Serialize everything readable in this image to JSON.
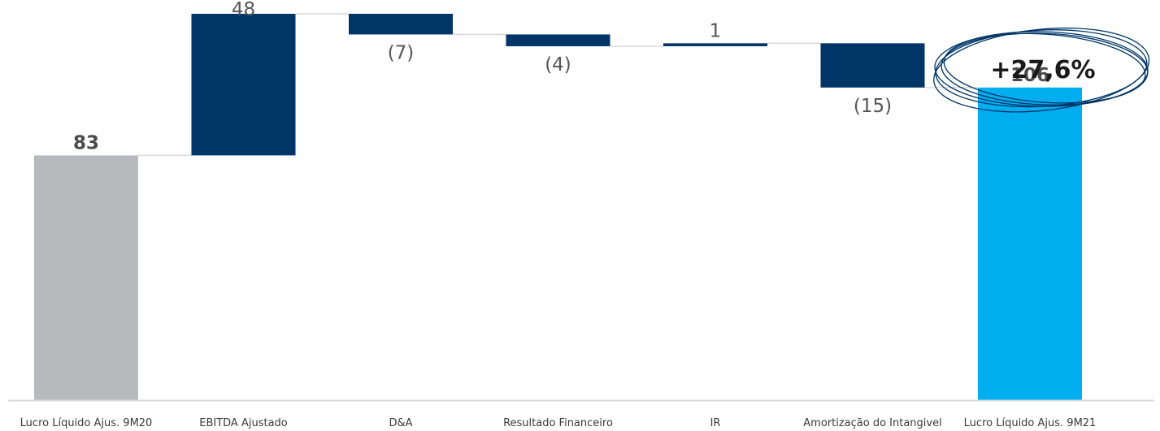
{
  "chart_data": {
    "type": "bar",
    "subtype": "waterfall",
    "categories": [
      "Lucro Líquido Ajus. 9M20",
      "EBITDA Ajustado",
      "D&A",
      "Resultado Financeiro",
      "IR",
      "Amortização do Intangivel",
      "Lucro Líquido Ajus. 9M21"
    ],
    "values": [
      83,
      48,
      -7,
      -4,
      1,
      -15,
      106
    ],
    "value_labels": [
      "83",
      "48",
      "(7)",
      "(4)",
      "1",
      "(15)",
      "106"
    ],
    "kinds": [
      "total",
      "delta",
      "delta",
      "delta",
      "delta",
      "delta",
      "total"
    ],
    "title": "",
    "xlabel": "",
    "ylabel": "",
    "ylim": [
      0,
      131
    ],
    "grid": false,
    "legend": "none",
    "annotation": "+27,6%",
    "colors": {
      "start_total": "#b8b9bd",
      "delta": "#003567",
      "end_total": "#00adef",
      "connector": "#d9d9d9",
      "baseline": "#d9d9d9",
      "badge_stroke": "#003567"
    }
  }
}
